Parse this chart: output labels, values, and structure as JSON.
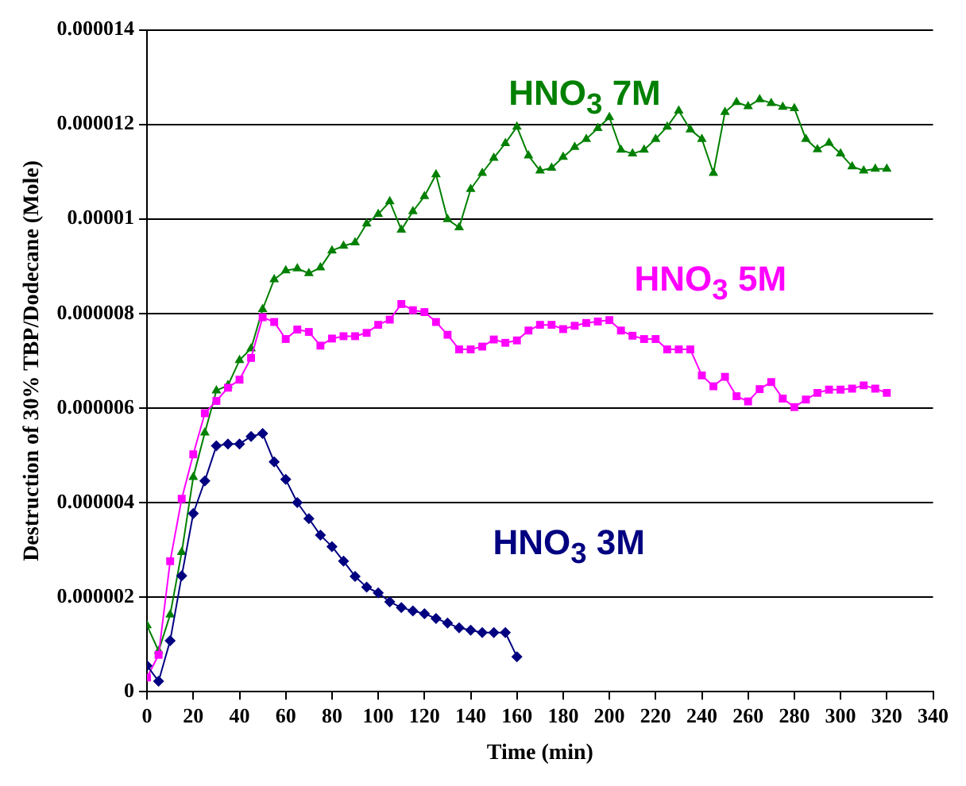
{
  "chart_data": {
    "type": "line",
    "xlabel": "Time (min)",
    "ylabel": "Destruction of 30% TBP/Dodecane (Mole)",
    "xlim": [
      0,
      340
    ],
    "xticks": [
      0,
      20,
      40,
      60,
      80,
      100,
      120,
      140,
      160,
      180,
      200,
      220,
      240,
      260,
      280,
      300,
      320,
      340
    ],
    "ylim": [
      0,
      1.4e-05
    ],
    "yticks": [
      0,
      {
        "value": 2e-06,
        "label": "0.000002"
      },
      {
        "value": 4e-06,
        "label": "0.000004"
      },
      {
        "value": 6e-06,
        "label": "0.000006"
      },
      {
        "value": 8e-06,
        "label": "0.000008"
      },
      {
        "value": 1e-05,
        "label": "0.00001"
      },
      {
        "value": 1.2e-05,
        "label": "0.000012"
      },
      {
        "value": 1.4e-05,
        "label": "0.000014"
      }
    ],
    "grid": "y",
    "legend": false,
    "line_style": "solid",
    "series": [
      {
        "name": "HNO$_{3}$ 3M",
        "color": "#000080",
        "marker": "diamond",
        "x": [
          0,
          5,
          10,
          15,
          20,
          25,
          30,
          35,
          40,
          45,
          50,
          55,
          60,
          65,
          70,
          75,
          80,
          85,
          90,
          95,
          100,
          105,
          110,
          115,
          120,
          125,
          130,
          135,
          140,
          145,
          150,
          155,
          160
        ],
        "values": [
          5.5e-07,
          2.2e-07,
          1.08e-06,
          2.45e-06,
          3.77e-06,
          4.46e-06,
          5.2e-06,
          5.24e-06,
          5.24e-06,
          5.4e-06,
          5.46e-06,
          4.86e-06,
          4.49e-06,
          4e-06,
          3.66e-06,
          3.31e-06,
          3.07e-06,
          2.76e-06,
          2.44e-06,
          2.21e-06,
          2.09e-06,
          1.9e-06,
          1.78e-06,
          1.71e-06,
          1.65e-06,
          1.55e-06,
          1.45e-06,
          1.35e-06,
          1.3e-06,
          1.25e-06,
          1.25e-06,
          1.25e-06,
          7.4e-07
        ]
      },
      {
        "name": "HNO$_{3}$ 5M",
        "color": "#ff00ff",
        "marker": "square",
        "x": [
          0,
          5,
          10,
          15,
          20,
          25,
          30,
          35,
          40,
          45,
          50,
          55,
          60,
          65,
          70,
          75,
          80,
          85,
          90,
          95,
          100,
          105,
          110,
          115,
          120,
          125,
          130,
          135,
          140,
          145,
          150,
          155,
          160,
          165,
          170,
          175,
          180,
          185,
          190,
          195,
          200,
          205,
          210,
          215,
          220,
          225,
          230,
          235,
          240,
          245,
          250,
          255,
          260,
          265,
          270,
          275,
          280,
          285,
          290,
          295,
          300,
          305,
          310,
          315,
          320
        ],
        "values": [
          3e-07,
          7.8e-07,
          2.76e-06,
          4.08e-06,
          5.02e-06,
          5.89e-06,
          6.15e-06,
          6.43e-06,
          6.6e-06,
          7.06e-06,
          7.92e-06,
          7.82e-06,
          7.46e-06,
          7.66e-06,
          7.61e-06,
          7.32e-06,
          7.47e-06,
          7.52e-06,
          7.52e-06,
          7.59e-06,
          7.76e-06,
          7.87e-06,
          8.2e-06,
          8.07e-06,
          8.03e-06,
          7.82e-06,
          7.55e-06,
          7.24e-06,
          7.24e-06,
          7.3e-06,
          7.45e-06,
          7.38e-06,
          7.43e-06,
          7.64e-06,
          7.76e-06,
          7.76e-06,
          7.67e-06,
          7.74e-06,
          7.8e-06,
          7.83e-06,
          7.86e-06,
          7.64e-06,
          7.53e-06,
          7.46e-06,
          7.46e-06,
          7.24e-06,
          7.24e-06,
          7.24e-06,
          6.69e-06,
          6.46e-06,
          6.66e-06,
          6.25e-06,
          6.14e-06,
          6.4e-06,
          6.55e-06,
          6.2e-06,
          6.02e-06,
          6.18e-06,
          6.32e-06,
          6.39e-06,
          6.39e-06,
          6.41e-06,
          6.48e-06,
          6.41e-06,
          6.32e-06
        ]
      },
      {
        "name": "HNO$_{3}$ 7M",
        "color": "#008000",
        "marker": "triangle",
        "x": [
          0,
          5,
          10,
          15,
          20,
          25,
          30,
          35,
          40,
          45,
          50,
          55,
          60,
          65,
          70,
          75,
          80,
          85,
          90,
          95,
          100,
          105,
          110,
          115,
          120,
          125,
          130,
          135,
          140,
          145,
          150,
          155,
          160,
          165,
          170,
          175,
          180,
          185,
          190,
          195,
          200,
          205,
          210,
          215,
          220,
          225,
          230,
          235,
          240,
          245,
          250,
          255,
          260,
          265,
          270,
          275,
          280,
          285,
          290,
          295,
          300,
          305,
          310,
          315,
          320
        ],
        "values": [
          1.4e-06,
          8.6e-07,
          1.63e-06,
          2.95e-06,
          4.54e-06,
          5.48e-06,
          6.37e-06,
          6.48e-06,
          7.01e-06,
          7.26e-06,
          8.09e-06,
          8.72e-06,
          8.91e-06,
          8.95e-06,
          8.85e-06,
          8.97e-06,
          9.33e-06,
          9.43e-06,
          9.5e-06,
          9.9e-06,
          1.01e-05,
          1.037e-05,
          9.77e-06,
          1.016e-05,
          1.048e-05,
          1.094e-05,
          9.99e-06,
          9.82e-06,
          1.063e-05,
          1.097e-05,
          1.129e-05,
          1.16e-05,
          1.195e-05,
          1.134e-05,
          1.102e-05,
          1.108e-05,
          1.131e-05,
          1.152e-05,
          1.169e-05,
          1.192e-05,
          1.215e-05,
          1.146e-05,
          1.138e-05,
          1.146e-05,
          1.169e-05,
          1.195e-05,
          1.229e-05,
          1.189e-05,
          1.169e-05,
          1.097e-05,
          1.226e-05,
          1.247e-05,
          1.238e-05,
          1.253e-05,
          1.245e-05,
          1.237e-05,
          1.234e-05,
          1.169e-05,
          1.147e-05,
          1.161e-05,
          1.138e-05,
          1.111e-05,
          1.102e-05,
          1.106e-05,
          1.106e-05
        ]
      }
    ]
  }
}
